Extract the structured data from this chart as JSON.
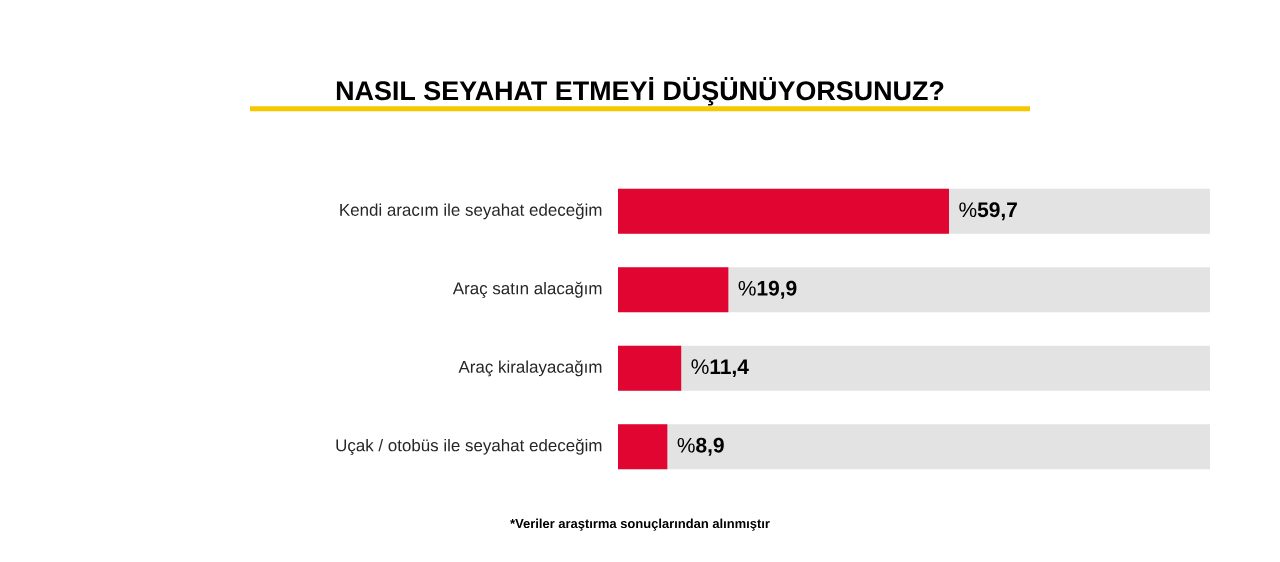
{
  "chart_data": {
    "type": "bar",
    "orientation": "horizontal",
    "title": "NASIL SEYAHAT ETMEYİ DÜŞÜNÜYORSUNUZ?",
    "categories": [
      "Kendi aracım ile seyahat edeceğim",
      "Araç satın alacağım",
      "Araç kiralayacağım",
      "Uçak / otobüs ile seyahat edeceğim"
    ],
    "values": [
      59.7,
      19.9,
      11.4,
      8.9
    ],
    "value_labels": [
      "%**59,7**",
      "%**19,9**",
      "%**11,4**",
      "%**8,9**"
    ],
    "color": "#e10532",
    "tick_labels": "y",
    "annotations": [
      "*Veriler araştırma sonuçlarından alınmıştır"
    ]
  }
}
